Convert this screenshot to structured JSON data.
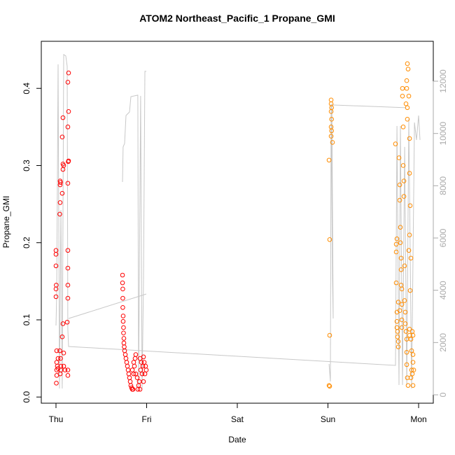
{
  "chart_data": {
    "type": "scatter",
    "title": "ATOM2 Northeast_Pacific_1 Propane_GMI",
    "xlabel": "Date",
    "ylabel": "Propane_GMI",
    "xlim": [
      -0.162,
      4.162
    ],
    "xticks": [
      {
        "value": 0,
        "label": "Thu"
      },
      {
        "value": 1,
        "label": "Fri"
      },
      {
        "value": 2,
        "label": "Sat"
      },
      {
        "value": 3,
        "label": "Sun"
      },
      {
        "value": 4,
        "label": "Mon"
      }
    ],
    "ylim": [
      -0.008,
      0.461
    ],
    "yticks": [
      {
        "value": 0,
        "label": "0.0"
      },
      0.1,
      0.2,
      0.3,
      0.4
    ],
    "y2lim": [
      -321,
      13527
    ],
    "y2ticks": [
      0,
      2000,
      4000,
      6000,
      8000,
      10000,
      12000
    ],
    "series": [
      {
        "color": "#ff0000",
        "type": "scatter",
        "x": [
          0,
          0,
          0,
          0.003,
          0,
          0,
          0.008,
          0.008,
          0.008,
          0.008,
          0.004,
          0.015,
          0.023,
          0.023,
          0.046,
          0.05,
          0.046,
          0.046,
          0.042,
          0.042,
          0.05,
          0.054,
          0.054,
          0.046,
          0.077,
          0.069,
          0.077,
          0.085,
          0.077,
          0.069,
          0.077,
          0.069,
          0.085,
          0.085,
          0.1,
          0.139,
          0.131,
          0.139,
          0.131,
          0.139,
          0.135,
          0.131,
          0.131,
          0.131,
          0.131,
          0.131,
          0.124,
          0.131,
          0.131,
          0.734,
          0.734,
          0.737,
          0.737,
          0.737,
          0.741,
          0.741,
          0.745,
          0.745,
          0.749,
          0.749,
          0.753,
          0.757,
          0.765,
          0.772,
          0.78,
          0.788,
          0.796,
          0.803,
          0.811,
          0.819,
          0.826,
          0.834,
          0.842,
          0.85,
          0.857,
          0.865,
          0.873,
          0.88,
          0.857,
          0.842,
          0.88,
          0.896,
          0.903,
          0.911,
          0.919,
          0.927,
          0.934,
          0.942,
          0.95,
          0.958,
          0.965,
          0.973,
          0.981,
          0.988,
          0.996,
          0.965,
          0.927
        ],
        "values": [
          0.19,
          0.185,
          0.17,
          0.145,
          0.14,
          0.13,
          0.06,
          0.045,
          0.035,
          0.028,
          0.018,
          0.04,
          0.05,
          0.037,
          0.28,
          0.278,
          0.275,
          0.252,
          0.237,
          0.06,
          0.05,
          0.04,
          0.035,
          0.03,
          0.362,
          0.337,
          0.302,
          0.3,
          0.295,
          0.264,
          0.095,
          0.078,
          0.057,
          0.04,
          0.035,
          0.42,
          0.408,
          0.37,
          0.35,
          0.306,
          0.305,
          0.277,
          0.19,
          0.167,
          0.145,
          0.128,
          0.097,
          0.035,
          0.028,
          0.158,
          0.148,
          0.14,
          0.128,
          0.116,
          0.105,
          0.098,
          0.09,
          0.083,
          0.076,
          0.07,
          0.065,
          0.06,
          0.055,
          0.05,
          0.045,
          0.04,
          0.035,
          0.03,
          0.025,
          0.02,
          0.015,
          0.012,
          0.01,
          0.01,
          0.03,
          0.04,
          0.05,
          0.055,
          0.045,
          0.035,
          0.03,
          0.025,
          0.01,
          0.015,
          0.02,
          0.05,
          0.035,
          0.045,
          0.03,
          0.04,
          0.052,
          0.045,
          0.03,
          0.04,
          0.035,
          0.02,
          0.01
        ]
      },
      {
        "color": "#ff8c00",
        "type": "scatter",
        "x": [
          3.035,
          3.035,
          3.04,
          3.035,
          3.04,
          3.035,
          3.04,
          3.035,
          3.05,
          3.012,
          3.019,
          3.019,
          3.012,
          3.019,
          3.745,
          3.761,
          3.753,
          3.753,
          3.753,
          3.776,
          3.761,
          3.761,
          3.761,
          3.768,
          3.768,
          3.776,
          3.776,
          3.784,
          3.792,
          3.792,
          3.799,
          3.799,
          3.807,
          3.807,
          3.807,
          3.815,
          3.815,
          3.815,
          3.815,
          3.792,
          3.822,
          3.822,
          3.83,
          3.83,
          3.838,
          3.838,
          3.845,
          3.845,
          3.853,
          3.853,
          3.861,
          3.869,
          3.869,
          3.869,
          3.876,
          3.884,
          3.869,
          3.876,
          3.884,
          3.869,
          3.892,
          3.861,
          3.876,
          3.876,
          3.9,
          3.9,
          3.907,
          3.9,
          3.892,
          3.915,
          3.907,
          3.9,
          3.9,
          3.923,
          3.938,
          3.938,
          3.923,
          3.93,
          3.915,
          3.938,
          3.946,
          3.93,
          3.938,
          3.915
        ],
        "values": [
          0.385,
          0.38,
          0.375,
          0.37,
          0.36,
          0.35,
          0.345,
          0.338,
          0.33,
          0.307,
          0.204,
          0.08,
          0.015,
          0.014,
          0.328,
          0.205,
          0.198,
          0.188,
          0.148,
          0.123,
          0.11,
          0.098,
          0.09,
          0.085,
          0.078,
          0.072,
          0.065,
          0.31,
          0.275,
          0.255,
          0.22,
          0.2,
          0.18,
          0.165,
          0.145,
          0.14,
          0.12,
          0.1,
          0.09,
          0.112,
          0.4,
          0.39,
          0.35,
          0.3,
          0.28,
          0.26,
          0.17,
          0.125,
          0.11,
          0.095,
          0.085,
          0.075,
          0.058,
          0.042,
          0.025,
          0.015,
          0.41,
          0.432,
          0.425,
          0.4,
          0.39,
          0.38,
          0.375,
          0.36,
          0.335,
          0.29,
          0.248,
          0.21,
          0.19,
          0.18,
          0.138,
          0.088,
          0.08,
          0.06,
          0.055,
          0.045,
          0.035,
          0.03,
          0.025,
          0.015,
          0.035,
          0.085,
          0.08,
          0.075
        ]
      },
      {
        "color": "#c8c8c8",
        "type": "line",
        "axis": "y2",
        "x": [
          0,
          0.008,
          0.023,
          0.039,
          0.054,
          0.069,
          0.085,
          0.108,
          0.124,
          0.131,
          0.139,
          3.745,
          3.761,
          3.784,
          3.799,
          3.822,
          3.846,
          3.869,
          3.892,
          3.923,
          3.954,
          3.977,
          4.0,
          4.015,
          null,
          0.139,
          0.996,
          null,
          0.734,
          0.741,
          0.757,
          0.772,
          0.811,
          0.826,
          0.903,
          0.911,
          0.934,
          0.95,
          0.965,
          0.981,
          0.996,
          null,
          3.012,
          3.027,
          3.035,
          3.05,
          3.058,
          3.043,
          3.861
        ],
        "values": [
          2652,
          3858,
          12645,
          241,
          7073,
          241,
          13020,
          12966,
          12565,
          2518,
          1848,
          1125,
          10287,
          375,
          10287,
          375,
          9484,
          375,
          10555,
          241,
          10421,
          9752,
          10689,
          9752,
          null,
          2920,
          3858,
          null,
          8144,
          9484,
          9618,
          10689,
          10823,
          11412,
          11466,
          241,
          11439,
          241,
          4394,
          12377,
          12377,
          null,
          1179,
          509,
          11144,
          4394,
          2920,
          11091,
          10984
        ]
      }
    ]
  }
}
